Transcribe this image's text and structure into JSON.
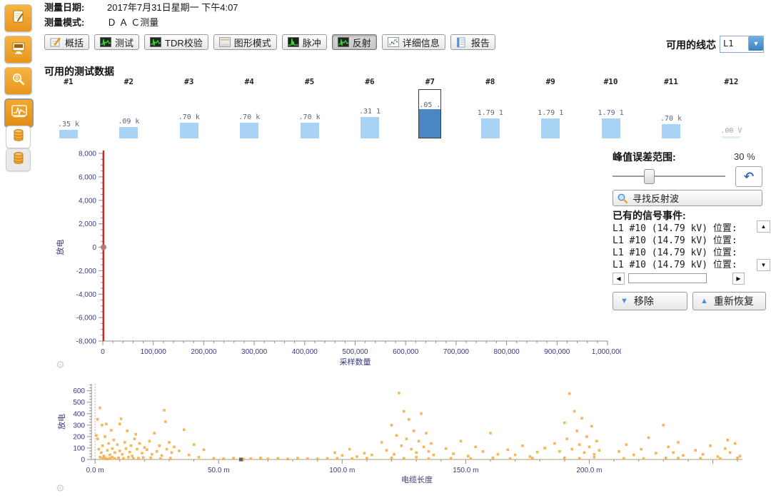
{
  "header": {
    "date_label": "测量日期:",
    "date_value": "2017年7月31日星期一  下午4:07",
    "mode_label": "测量模式:",
    "mode_value": "Ｄ Ａ Ｃ测量"
  },
  "sidebar": {
    "items": [
      {
        "name": "records",
        "icon": "clipboard-icon",
        "state": "normal"
      },
      {
        "name": "monitor",
        "icon": "monitor-icon",
        "state": "normal"
      },
      {
        "name": "inspect",
        "icon": "magnifier-icon",
        "state": "normal"
      },
      {
        "name": "waveform",
        "icon": "waveform-icon",
        "state": "pressed"
      },
      {
        "name": "database",
        "icon": "database-icon",
        "state": "flat"
      },
      {
        "name": "database-alt",
        "icon": "database-icon",
        "state": "flat2"
      }
    ]
  },
  "toolbar": {
    "buttons": [
      {
        "name": "overview",
        "label": "概括",
        "icon": "pencil-pad-icon",
        "active": false
      },
      {
        "name": "test",
        "label": "测试",
        "icon": "waveform-icon",
        "active": false
      },
      {
        "name": "tdr-check",
        "label": "TDR校验",
        "icon": "waveform-icon",
        "active": false
      },
      {
        "name": "graph-mode",
        "label": "图形模式",
        "icon": "layers-icon",
        "active": false
      },
      {
        "name": "pulse",
        "label": "脉冲",
        "icon": "pulse-icon",
        "active": false
      },
      {
        "name": "reflection",
        "label": "反射",
        "icon": "waveform-icon",
        "active": true
      },
      {
        "name": "details",
        "label": "详细信息",
        "icon": "scatter-icon",
        "active": false
      },
      {
        "name": "report",
        "label": "报告",
        "icon": "report-icon",
        "active": false
      }
    ],
    "core_label": "可用的线芯",
    "core_value": "L1"
  },
  "test_data": {
    "title": "可用的测试数据",
    "items": [
      {
        "id": "#1",
        "value": ".35 k",
        "height": 12,
        "selected": false
      },
      {
        "id": "#2",
        "value": ".09 k",
        "height": 16,
        "selected": false
      },
      {
        "id": "#3",
        "value": ".70 k",
        "height": 22,
        "selected": false
      },
      {
        "id": "#4",
        "value": ".70 k",
        "height": 22,
        "selected": false
      },
      {
        "id": "#5",
        "value": ".70 k",
        "height": 22,
        "selected": false
      },
      {
        "id": "#6",
        "value": ".31 1",
        "height": 30,
        "selected": false
      },
      {
        "id": "#7",
        "value": ".05 .",
        "height": 40,
        "selected": true
      },
      {
        "id": "#8",
        "value": "1.79 1",
        "height": 28,
        "selected": false
      },
      {
        "id": "#9",
        "value": "1.79 1",
        "height": 28,
        "selected": false
      },
      {
        "id": "#10",
        "value": "1.79 1",
        "height": 28,
        "selected": false
      },
      {
        "id": "#11",
        "value": ".70 k",
        "height": 20,
        "selected": false
      },
      {
        "id": "#12",
        "value": ".00 V",
        "height": 3,
        "selected": false
      }
    ]
  },
  "right_panel": {
    "peak_label": "峰值误差范围:",
    "peak_value": "30 %",
    "slider_position": 0.3,
    "undo_icon": "undo-arrow-icon",
    "find_button_label": "寻找反射波",
    "events_label": "已有的信号事件:",
    "events": [
      "L1 #10 (14.79 kV) 位置:",
      "L1 #10 (14.79 kV) 位置:",
      "L1 #10 (14.79 kV) 位置:",
      "L1 #10 (14.79 kV) 位置:"
    ],
    "remove_button_label": "移除",
    "restore_button_label": "重新恢复"
  },
  "colors": {
    "bar_blue": "#a9d3f5",
    "bar_blue_faint": "#dfeefa",
    "bar_selected": "#4a86c4",
    "cursor_red": "#c42a2a",
    "cursor_dot": "#b87878",
    "scatter_orange": "#f2a93b",
    "axis_text": "#3b3b7e",
    "axis_line": "#8f8f8f",
    "accent_blue": "#4a90d9"
  },
  "chart_data": [
    {
      "id": "reflection-chart",
      "type": "line",
      "title": "",
      "xlabel": "采样数量",
      "ylabel": "放电",
      "xlim": [
        0,
        1000000
      ],
      "ylim": [
        -8000,
        8000
      ],
      "x_major_step": 100000,
      "x_minor_step": 20000,
      "y_major_step": 2000,
      "y_minor_step": 500,
      "x_tick_format": "comma",
      "y_tick_format": "comma",
      "grid": false,
      "legend": "none",
      "cursor_x": 0,
      "points": [
        [
          0,
          0
        ]
      ]
    },
    {
      "id": "cable-map-chart",
      "type": "scatter",
      "title": "",
      "xlabel": "电缆长度",
      "ylabel": "放电",
      "xlim": [
        -1.5,
        262
      ],
      "ylim": [
        0,
        660
      ],
      "x_major_step": 50,
      "x_minor_step": 10,
      "y_major_step": 100,
      "y_minor_step": 25,
      "x_tick_format": "meters",
      "y_tick_format": "plain",
      "x_label_max": 200,
      "grid": false,
      "legend": "none",
      "baseline_y": 0,
      "baseline_marker_x": 59,
      "points": [
        [
          0.5,
          210
        ],
        [
          1,
          180
        ],
        [
          1,
          350
        ],
        [
          1.5,
          90
        ],
        [
          2,
          450
        ],
        [
          2,
          20
        ],
        [
          2.5,
          60
        ],
        [
          2.8,
          300
        ],
        [
          3,
          120
        ],
        [
          3,
          10
        ],
        [
          3.5,
          30
        ],
        [
          4,
          200
        ],
        [
          4,
          15
        ],
        [
          4.5,
          310
        ],
        [
          5,
          80
        ],
        [
          5,
          5
        ],
        [
          5.5,
          140
        ],
        [
          6,
          40
        ],
        [
          6,
          10
        ],
        [
          6.5,
          255
        ],
        [
          7,
          95
        ],
        [
          7,
          20
        ],
        [
          7.5,
          170
        ],
        [
          8,
          60
        ],
        [
          8,
          8
        ],
        [
          9,
          130
        ],
        [
          9.5,
          15
        ],
        [
          10,
          75
        ],
        [
          10,
          310
        ],
        [
          10.5,
          355
        ],
        [
          11,
          45
        ],
        [
          11.5,
          10
        ],
        [
          12,
          150
        ],
        [
          12.5,
          95
        ],
        [
          13,
          250
        ],
        [
          13.5,
          20
        ],
        [
          14,
          65
        ],
        [
          14.5,
          120
        ],
        [
          15,
          30
        ],
        [
          15.5,
          8
        ],
        [
          16,
          180
        ],
        [
          16.5,
          220
        ],
        [
          17,
          90
        ],
        [
          17.5,
          12
        ],
        [
          18,
          140
        ],
        [
          19,
          55
        ],
        [
          19.5,
          18
        ],
        [
          20,
          105
        ],
        [
          21,
          85
        ],
        [
          22,
          160
        ],
        [
          22.5,
          15
        ],
        [
          23,
          45
        ],
        [
          24,
          230
        ],
        [
          25,
          70
        ],
        [
          26,
          120
        ],
        [
          26.5,
          8
        ],
        [
          27,
          35
        ],
        [
          28,
          430
        ],
        [
          28.5,
          330
        ],
        [
          29,
          90
        ],
        [
          30,
          150
        ],
        [
          30.5,
          12
        ],
        [
          31,
          60
        ],
        [
          32,
          110
        ],
        [
          34,
          75
        ],
        [
          36,
          260
        ],
        [
          38,
          40
        ],
        [
          40,
          130
        ],
        [
          42,
          20
        ],
        [
          44,
          85
        ],
        [
          48,
          10
        ],
        [
          52,
          6
        ],
        [
          56,
          12
        ],
        [
          59,
          4
        ],
        [
          60,
          5
        ],
        [
          63,
          8
        ],
        [
          67,
          15
        ],
        [
          70,
          6
        ],
        [
          74,
          10
        ],
        [
          78,
          5
        ],
        [
          82,
          12
        ],
        [
          86,
          8
        ],
        [
          90,
          6
        ],
        [
          94,
          10
        ],
        [
          97,
          60
        ],
        [
          98,
          10
        ],
        [
          100,
          35
        ],
        [
          103,
          90
        ],
        [
          104,
          8
        ],
        [
          106,
          25
        ],
        [
          109,
          55
        ],
        [
          110,
          12
        ],
        [
          112,
          40
        ],
        [
          116,
          150
        ],
        [
          118,
          80
        ],
        [
          120,
          300
        ],
        [
          120,
          15
        ],
        [
          121,
          45
        ],
        [
          122,
          210
        ],
        [
          123,
          580
        ],
        [
          124,
          120
        ],
        [
          125,
          420
        ],
        [
          125,
          10
        ],
        [
          126,
          180
        ],
        [
          127,
          350
        ],
        [
          128,
          90
        ],
        [
          129,
          250
        ],
        [
          130,
          60
        ],
        [
          130,
          20
        ],
        [
          131,
          160
        ],
        [
          132,
          400
        ],
        [
          133,
          110
        ],
        [
          134,
          230
        ],
        [
          135,
          70
        ],
        [
          135,
          8
        ],
        [
          136,
          140
        ],
        [
          137,
          40
        ],
        [
          142,
          95
        ],
        [
          144,
          10
        ],
        [
          145,
          50
        ],
        [
          148,
          160
        ],
        [
          151,
          30
        ],
        [
          152,
          8
        ],
        [
          154,
          110
        ],
        [
          157,
          70
        ],
        [
          160,
          230
        ],
        [
          161,
          15
        ],
        [
          163,
          45
        ],
        [
          167,
          85
        ],
        [
          168,
          8
        ],
        [
          170,
          40
        ],
        [
          173,
          120
        ],
        [
          176,
          25
        ],
        [
          177,
          12
        ],
        [
          179,
          65
        ],
        [
          182,
          100
        ],
        [
          186,
          140
        ],
        [
          188,
          70
        ],
        [
          190,
          320
        ],
        [
          190,
          15
        ],
        [
          191,
          180
        ],
        [
          192,
          575
        ],
        [
          193,
          90
        ],
        [
          194,
          420
        ],
        [
          195,
          250
        ],
        [
          196,
          130
        ],
        [
          196,
          10
        ],
        [
          197,
          360
        ],
        [
          198,
          60
        ],
        [
          199,
          200
        ],
        [
          200,
          110
        ],
        [
          201,
          290
        ],
        [
          202,
          45
        ],
        [
          202,
          20
        ],
        [
          203,
          160
        ],
        [
          204,
          80
        ],
        [
          212,
          70
        ],
        [
          214,
          10
        ],
        [
          215,
          130
        ],
        [
          218,
          40
        ],
        [
          221,
          90
        ],
        [
          222,
          8
        ],
        [
          224,
          190
        ],
        [
          227,
          55
        ],
        [
          230,
          300
        ],
        [
          231,
          15
        ],
        [
          232,
          110
        ],
        [
          234,
          60
        ],
        [
          236,
          150
        ],
        [
          236,
          12
        ],
        [
          238,
          35
        ],
        [
          243,
          80
        ],
        [
          245,
          10
        ],
        [
          246,
          45
        ],
        [
          249,
          120
        ],
        [
          252,
          25
        ],
        [
          253,
          8
        ],
        [
          255,
          95
        ],
        [
          256,
          170
        ],
        [
          257,
          60
        ],
        [
          259,
          140
        ],
        [
          260,
          15
        ],
        [
          261,
          30
        ]
      ]
    }
  ]
}
